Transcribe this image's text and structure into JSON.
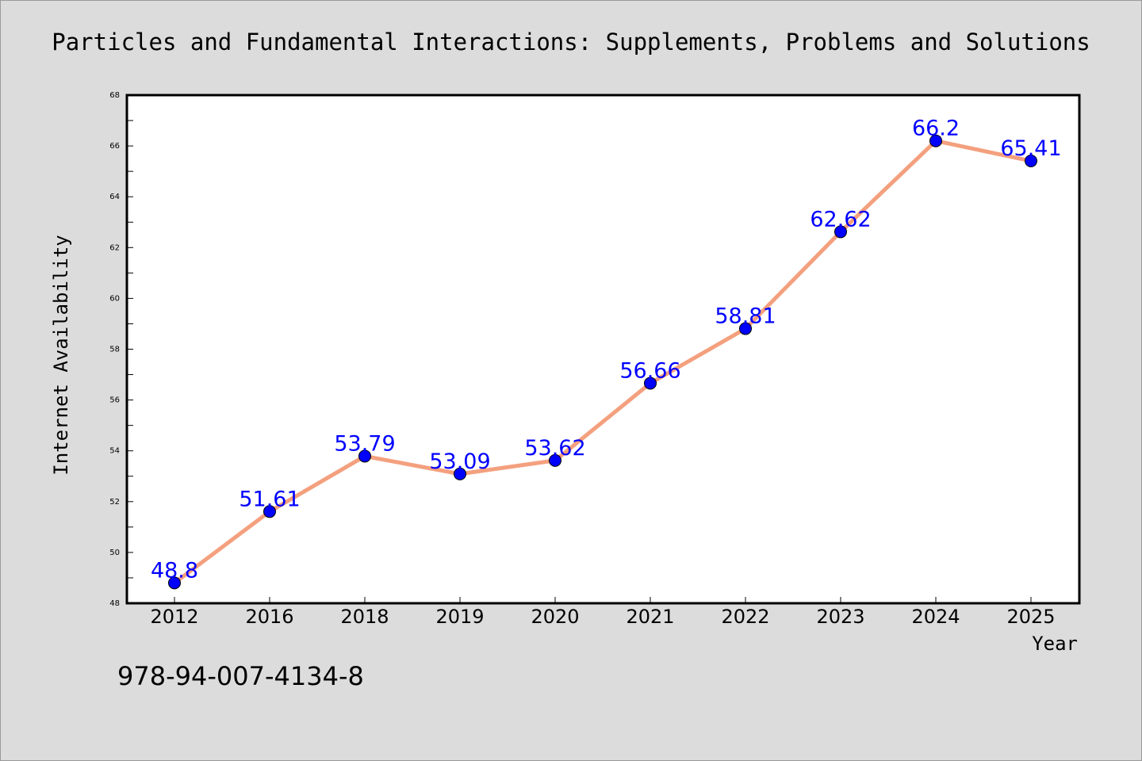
{
  "chart_data": {
    "type": "line",
    "title": "Particles and Fundamental Interactions: Supplements, Problems and Solutions",
    "xlabel": "Year",
    "ylabel": "Internet Availability",
    "categories": [
      "2012",
      "2016",
      "2018",
      "2019",
      "2020",
      "2021",
      "2022",
      "2023",
      "2024",
      "2025"
    ],
    "series": [
      {
        "values": [
          48.8,
          51.61,
          53.79,
          53.09,
          53.62,
          56.66,
          58.81,
          62.62,
          66.2,
          65.41
        ],
        "labels": [
          "48.8",
          "51.61",
          "53.79",
          "53.09",
          "53.62",
          "56.66",
          "58.81",
          "62.62",
          "66.2",
          "65.41"
        ]
      }
    ],
    "ylim": [
      48,
      68
    ],
    "yticks": [
      48,
      50,
      52,
      54,
      56,
      58,
      60,
      62,
      64,
      66,
      68
    ],
    "ytick_labels": [
      "48",
      "50",
      "52",
      "54",
      "56",
      "58",
      "60",
      "62",
      "64",
      "66",
      "68"
    ],
    "grid": false,
    "colors": {
      "line": "#f4a07e",
      "marker": "#0000ff",
      "label": "#0000ff"
    }
  },
  "footer": {
    "isbn": "978-94-007-4134-8"
  }
}
